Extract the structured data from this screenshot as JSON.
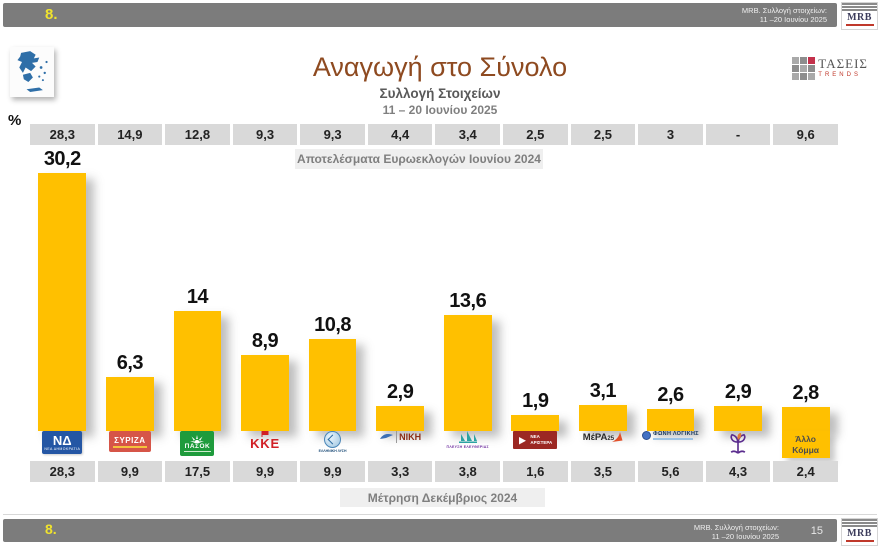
{
  "header": {
    "slide_number": "8.",
    "note_line1": "MRB. Συλλογή στοιχείων:",
    "note_line2": "11 –20 Ιουνίου 2025",
    "mrb_logo_text": "MRB"
  },
  "footer": {
    "slide_number": "8.",
    "note_line1": "MRB. Συλλογή στοιχείων:",
    "note_line2": "11 –20 Ιουνίου 2025",
    "page_number": "15",
    "mrb_logo_text": "MRB"
  },
  "taseis_logo": {
    "name": "ΤΑΣΕΙΣ",
    "subtitle": "TRENDS",
    "accent_color": "#c4314b"
  },
  "percent_label": "%",
  "euro_results_label": "Αποτελέσματα Ευρωεκλογών Ιουνίου 2024",
  "december_label": "Μέτρηση Δεκέμβριος 2024",
  "colors": {
    "bar_yellow": "#ffc000",
    "band_gray": "#d9d9d9",
    "header_gray": "#7c7c7c",
    "title_brown": "#8e4a20"
  },
  "chart_data": {
    "type": "bar",
    "title": "Αναγωγή στο Σύνολο",
    "subtitle": "Συλλογή Στοιχείων",
    "date_range": "11 – 20 Ιουνίου 2025",
    "categories": [
      "ΝΕΑ ΔΗΜΟΚΡΑΤΙΑ",
      "ΣΥΡΙΖΑ",
      "ΠΑΣΟΚ",
      "ΚΚΕ",
      "ΕΛΛΗΝΙΚΗ ΛΥΣΗ",
      "ΝΙΚΗ",
      "ΠΛΕΥΣΗ ΕΛΕΥΘΕΡΙΑΣ",
      "ΝΕΑ ΑΡΙΣΤΕΡΑ",
      "ΜέΡΑ25",
      "ΦΩΝΗ ΛΟΓΙΚΗΣ",
      "ΚΙΝΗΜΑ ΔΗΜΟΚΡΑΤΙΑΣ",
      "Άλλο Κόμμα"
    ],
    "series": [
      {
        "name": "Αποτελέσματα Ευρωεκλογών Ιουνίου 2024",
        "values": [
          "28,3",
          "14,9",
          "12,8",
          "9,3",
          "9,3",
          "4,4",
          "3,4",
          "2,5",
          "2,5",
          "3",
          "-",
          "9,6"
        ]
      },
      {
        "name": "Αναγωγή στο Σύνολο 11–20 Ιουνίου 2025",
        "numeric": [
          30.2,
          6.3,
          14,
          8.9,
          10.8,
          2.9,
          13.6,
          1.9,
          3.1,
          2.6,
          2.9,
          2.8
        ],
        "labels": [
          "30,2",
          "6,3",
          "14",
          "8,9",
          "10,8",
          "2,9",
          "13,6",
          "1,9",
          "3,1",
          "2,6",
          "2,9",
          "2,8"
        ]
      },
      {
        "name": "Μέτρηση Δεκέμβριος 2024",
        "values": [
          "28,3",
          "9,9",
          "17,5",
          "9,9",
          "9,9",
          "3,3",
          "3,8",
          "1,6",
          "3,5",
          "5,6",
          "4,3",
          "2,4"
        ]
      }
    ],
    "ylim": [
      0,
      33
    ],
    "grid": false,
    "legend": false
  },
  "parties": [
    {
      "id": "nd",
      "logo": "nd-logo",
      "label": "ΝΔ",
      "sublabel": "ΝΕΑ ΔΗΜΟΚΡΑΤΙΑ",
      "color": "#2456a4"
    },
    {
      "id": "syriza",
      "logo": "syriza-logo",
      "label": "ΣΥΡΙΖΑ",
      "color": "#d65548"
    },
    {
      "id": "pasok",
      "logo": "pasok-logo",
      "label": "ΠΑΣΟΚ",
      "color": "#1e9b3c"
    },
    {
      "id": "kke",
      "logo": "kke-logo",
      "label": "ΚΚΕ",
      "color": "#d12026"
    },
    {
      "id": "elliniki-lysi",
      "logo": "elliniki-lysi-logo",
      "label": "ΕΛΛΗΝΙΚΗ ΛΥΣΗ",
      "color": "#2e6da4"
    },
    {
      "id": "niki",
      "logo": "niki-logo",
      "label": "ΝΙΚΗ",
      "color": "#8a2c17"
    },
    {
      "id": "plefsi-eleftherias",
      "logo": "plefsi-eleftherias-logo",
      "label": "ΠΛΕΥΣΗ ΕΛΕΥΘΕΡΙΑΣ",
      "color": "#2ca3a3"
    },
    {
      "id": "nea-aristera",
      "logo": "nea-aristera-logo",
      "label": "ΝΕΑ ΑΡΙΣΤΕΡΑ",
      "color": "#9c2823"
    },
    {
      "id": "mera25",
      "logo": "mera25-logo",
      "label": "ΜέΡΑ25",
      "color": "#e1502a"
    },
    {
      "id": "foni-logikis",
      "logo": "foni-logikis-logo",
      "label": "ΦΩΝΗ ΛΟΓΙΚΗΣ",
      "color": "#17365d"
    },
    {
      "id": "kinima-dimokratias",
      "logo": "kinima-dimokratias-logo",
      "label": "",
      "color": "#5b2d8e"
    },
    {
      "id": "allo-komma",
      "logo": "allo-komma-logo",
      "label": "Άλλο Κόμμα",
      "color": "#ffc000"
    }
  ]
}
